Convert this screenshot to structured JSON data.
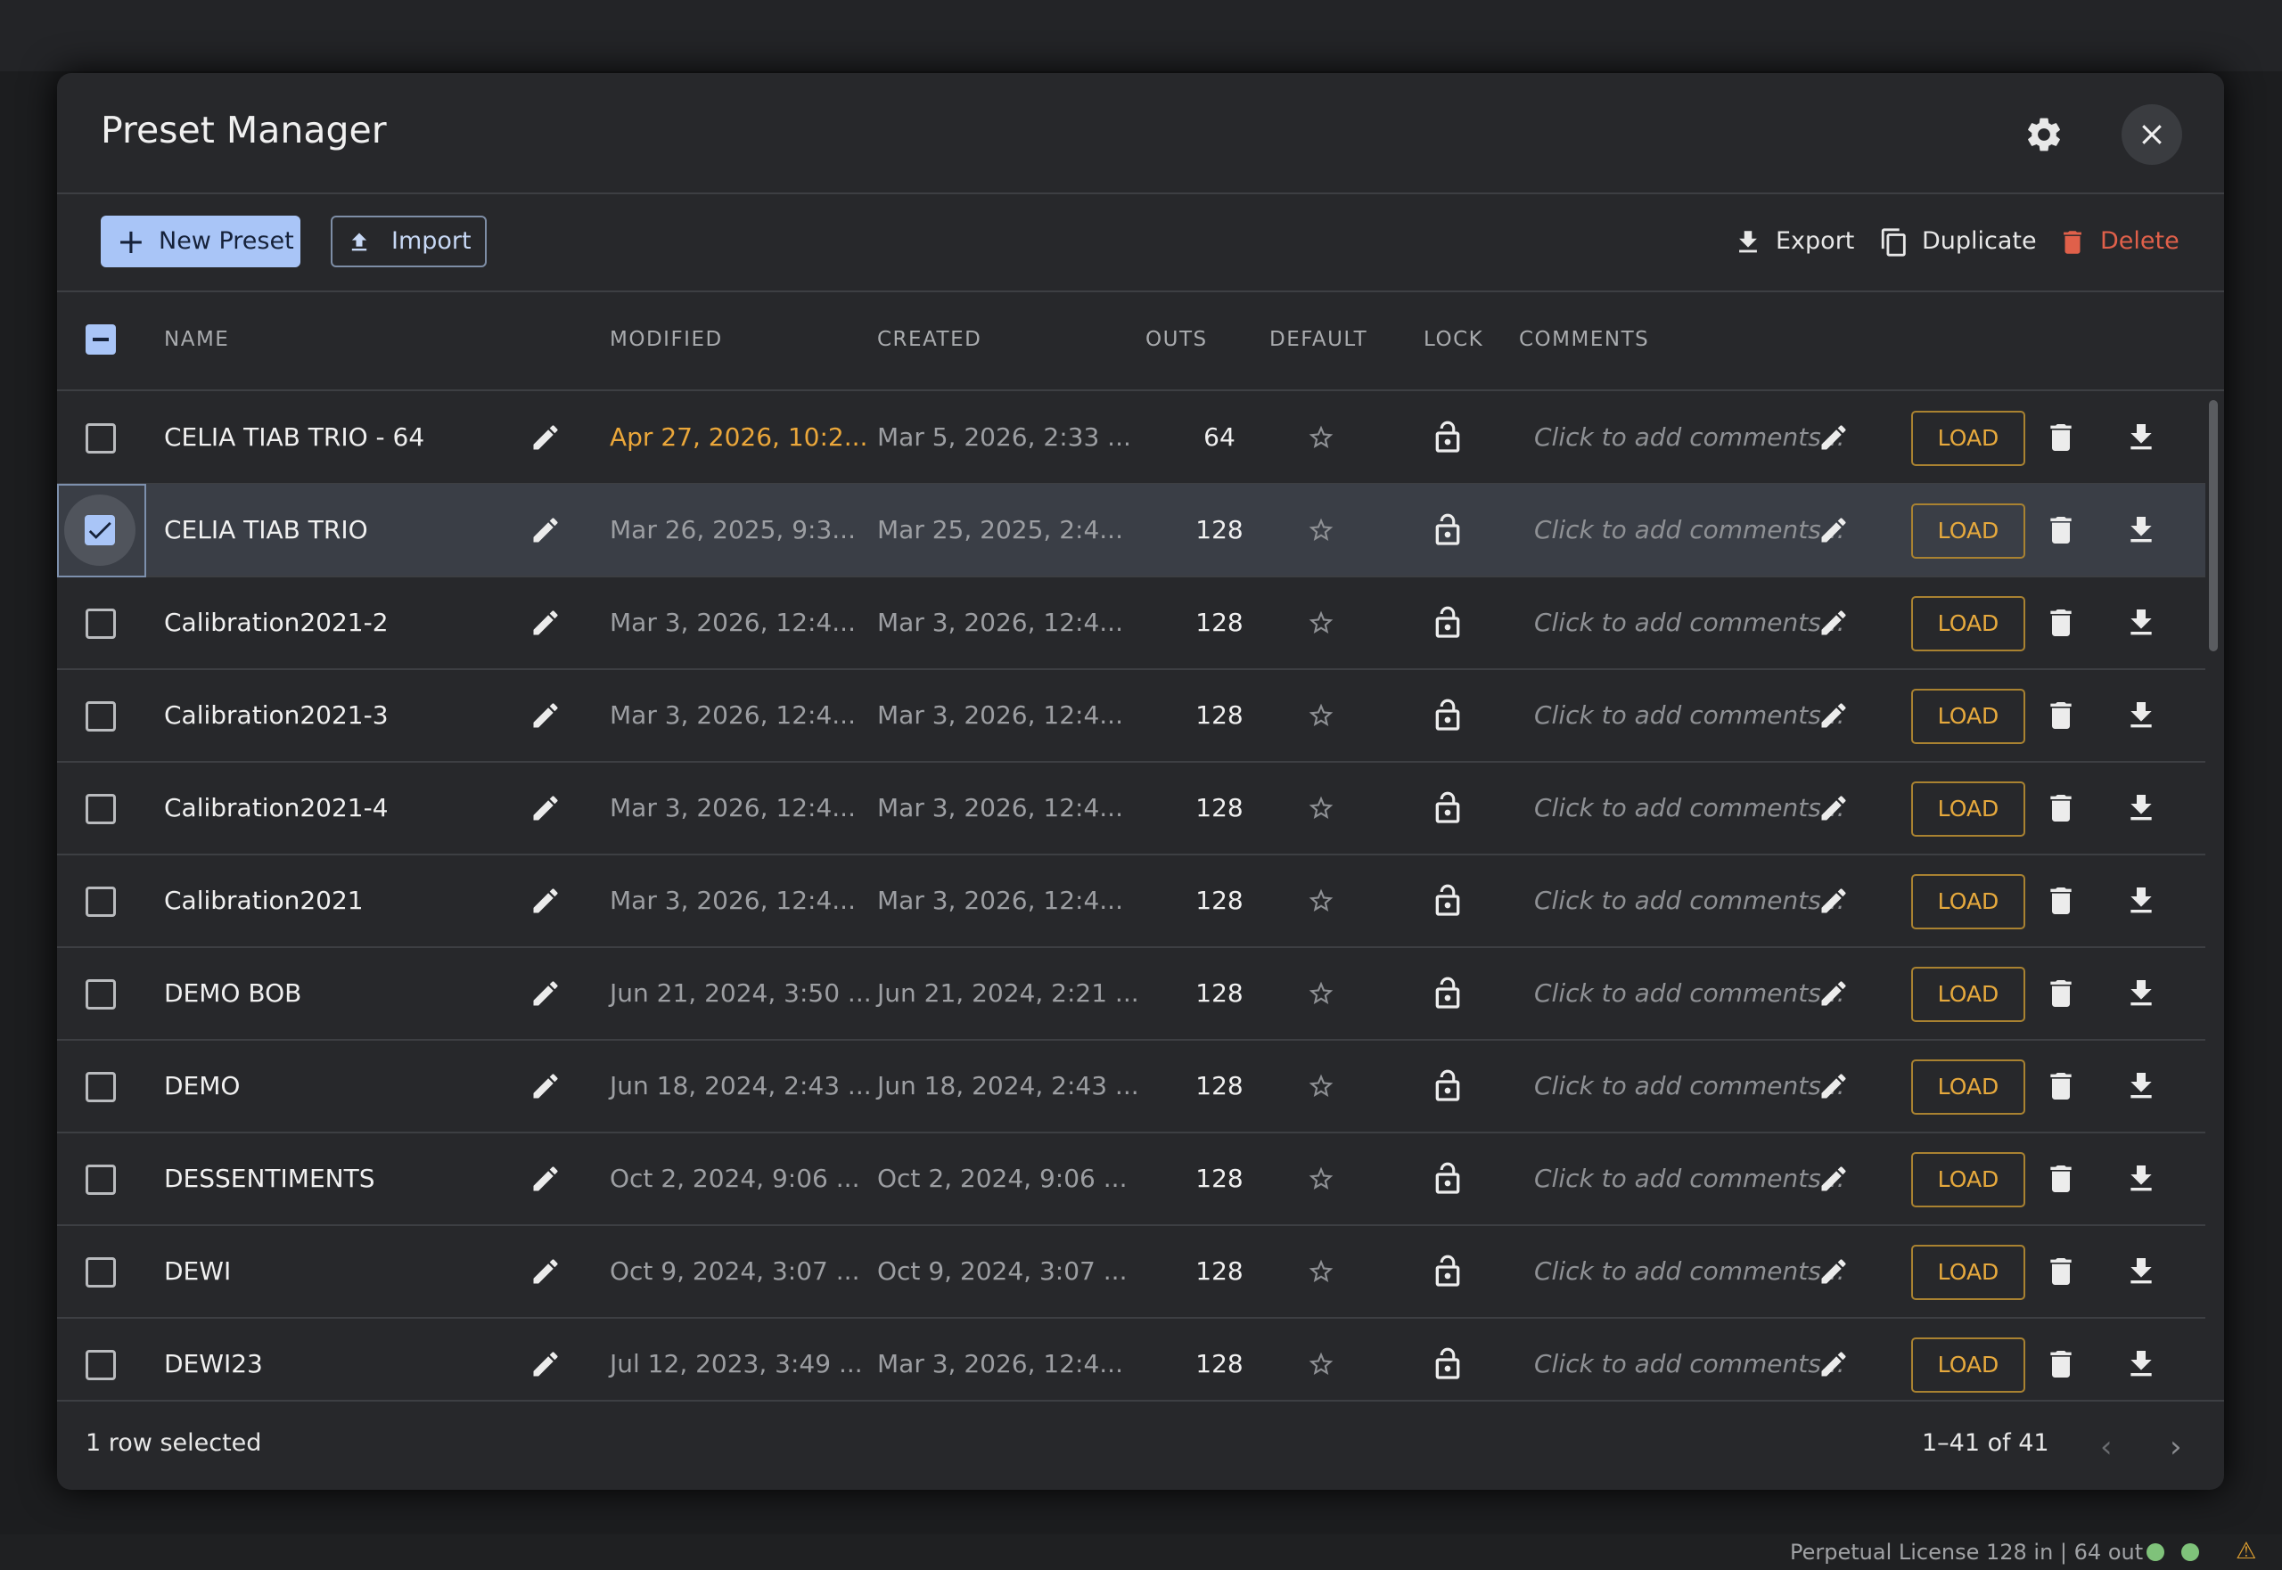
{
  "header": {
    "title": "Preset Manager"
  },
  "toolbar": {
    "new_preset": "New Preset",
    "import": "Import",
    "export": "Export",
    "duplicate": "Duplicate",
    "delete": "Delete"
  },
  "table": {
    "columns": [
      "NAME",
      "MODIFIED",
      "CREATED",
      "OUTS",
      "DEFAULT",
      "LOCK",
      "COMMENTS"
    ],
    "comment_placeholder": "Click to add comments...",
    "load_label": "LOAD",
    "rows": [
      {
        "name": "CELIA TIAB TRIO - 64",
        "modified": "Apr 27, 2026, 10:2...",
        "created": "Mar 5, 2026, 2:33 ...",
        "outs": 64,
        "selected": false,
        "highlight": true
      },
      {
        "name": "CELIA TIAB TRIO",
        "modified": "Mar 26, 2025, 9:3...",
        "created": "Mar 25, 2025, 2:4...",
        "outs": 128,
        "selected": true,
        "highlight": false
      },
      {
        "name": "Calibration2021-2",
        "modified": "Mar 3, 2026, 12:4...",
        "created": "Mar 3, 2026, 12:4...",
        "outs": 128,
        "selected": false,
        "highlight": false
      },
      {
        "name": "Calibration2021-3",
        "modified": "Mar 3, 2026, 12:4...",
        "created": "Mar 3, 2026, 12:4...",
        "outs": 128,
        "selected": false,
        "highlight": false
      },
      {
        "name": "Calibration2021-4",
        "modified": "Mar 3, 2026, 12:4...",
        "created": "Mar 3, 2026, 12:4...",
        "outs": 128,
        "selected": false,
        "highlight": false
      },
      {
        "name": "Calibration2021",
        "modified": "Mar 3, 2026, 12:4...",
        "created": "Mar 3, 2026, 12:4...",
        "outs": 128,
        "selected": false,
        "highlight": false
      },
      {
        "name": "DEMO BOB",
        "modified": "Jun 21, 2024, 3:50 ...",
        "created": "Jun 21, 2024, 2:21 ...",
        "outs": 128,
        "selected": false,
        "highlight": false
      },
      {
        "name": "DEMO",
        "modified": "Jun 18, 2024, 2:43 ...",
        "created": "Jun 18, 2024, 2:43 ...",
        "outs": 128,
        "selected": false,
        "highlight": false
      },
      {
        "name": "DESSENTIMENTS",
        "modified": "Oct 2, 2024, 9:06 ...",
        "created": "Oct 2, 2024, 9:06 ...",
        "outs": 128,
        "selected": false,
        "highlight": false
      },
      {
        "name": "DEWI",
        "modified": "Oct 9, 2024, 3:07 ...",
        "created": "Oct 9, 2024, 3:07 ...",
        "outs": 128,
        "selected": false,
        "highlight": false
      },
      {
        "name": "DEWI23",
        "modified": "Jul 12, 2023, 3:49 ...",
        "created": "Mar 3, 2026, 12:4...",
        "outs": 128,
        "selected": false,
        "highlight": false
      }
    ]
  },
  "footer": {
    "selection": "1 row selected",
    "pagination": "1–41 of 41"
  },
  "status": {
    "license": "Perpetual License 128 in | 64 out"
  }
}
